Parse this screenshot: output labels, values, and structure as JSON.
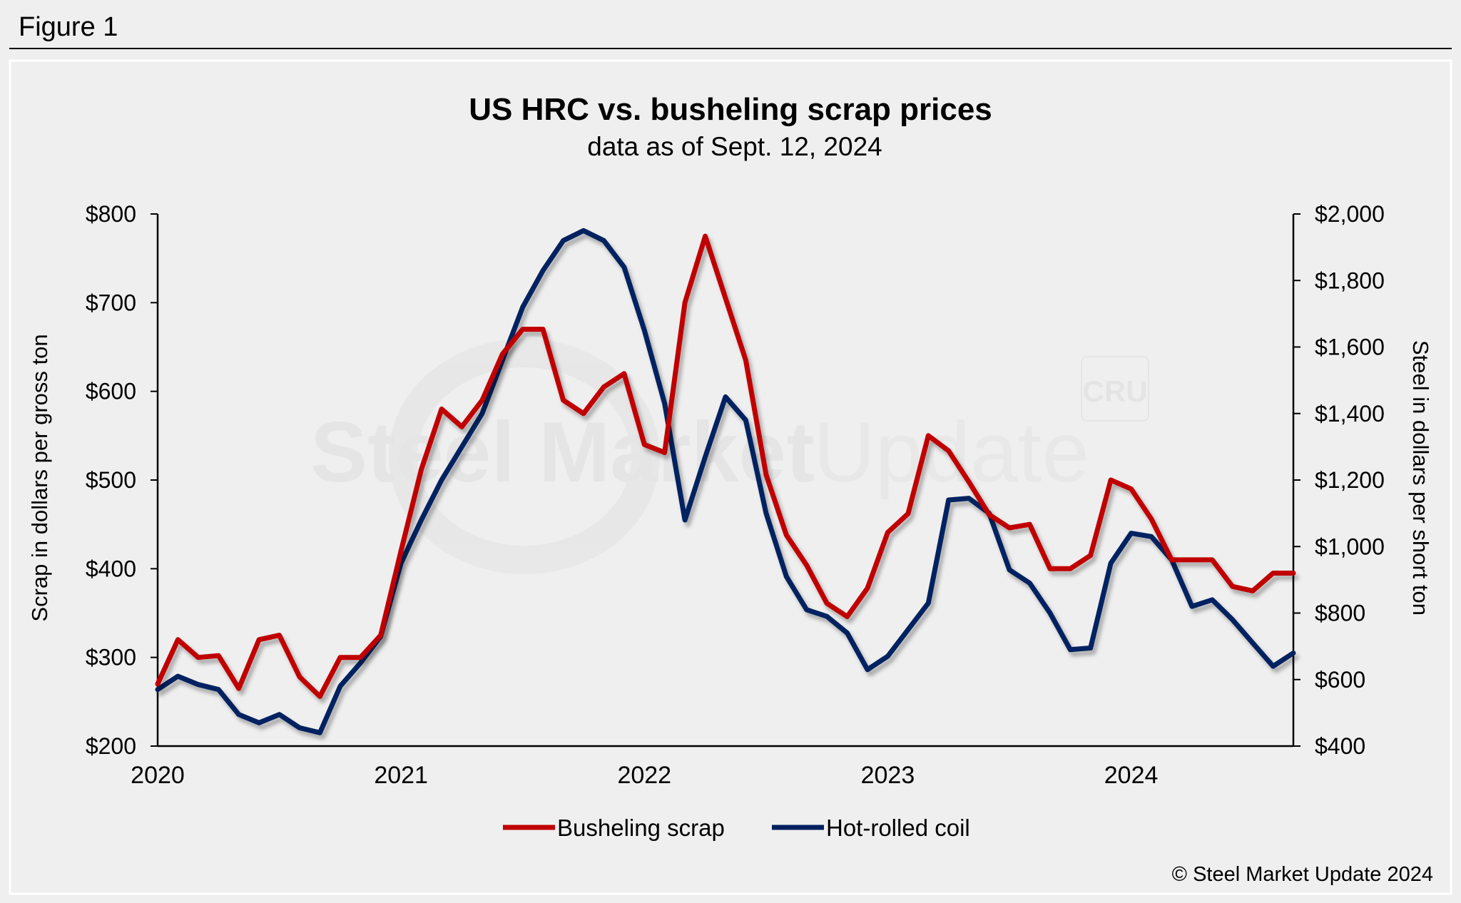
{
  "figure_label": "Figure 1",
  "copyright": "© Steel Market Update 2024",
  "watermark": {
    "text": "Steel Market Update",
    "badge": "CRU"
  },
  "colors": {
    "scrap": "#C00000",
    "hrc": "#002060",
    "background": "#EFEFEF"
  },
  "chart_data": {
    "type": "line",
    "title": "US HRC vs. busheling scrap prices",
    "subtitle": "data as of Sept. 12, 2024",
    "ylabel": "Scrap in dollars per gross ton",
    "y2label": "Steel in dollars per short ton",
    "ylim": [
      200,
      800
    ],
    "y2lim": [
      400,
      2000
    ],
    "yticks": [
      "$200",
      "$300",
      "$400",
      "$500",
      "$600",
      "$700",
      "$800"
    ],
    "y2ticks": [
      "$400",
      "$600",
      "$800",
      "$1,000",
      "$1,200",
      "$1,400",
      "$1,600",
      "$1,800",
      "$2,000"
    ],
    "xticks": [
      "2020",
      "2021",
      "2022",
      "2023",
      "2024"
    ],
    "x_start": "2020-01",
    "x_frequency": "monthly",
    "grid": false,
    "legend_position": "bottom",
    "series": [
      {
        "name": "Busheling scrap",
        "axis": "left",
        "values": [
          270,
          320,
          300,
          302,
          265,
          320,
          325,
          278,
          256,
          300,
          300,
          325,
          420,
          512,
          580,
          560,
          590,
          642,
          670,
          670,
          590,
          575,
          605,
          620,
          540,
          531,
          700,
          775,
          705,
          635,
          506,
          438,
          404,
          361,
          346,
          378,
          441,
          462,
          550,
          533,
          498,
          461,
          446,
          450,
          400,
          400,
          415,
          500,
          490,
          456,
          410,
          410,
          410,
          380,
          375,
          395,
          395
        ]
      },
      {
        "name": "Hot-rolled coil",
        "axis": "right",
        "values": [
          570,
          610,
          585,
          570,
          495,
          470,
          495,
          455,
          440,
          580,
          650,
          730,
          950,
          1080,
          1200,
          1300,
          1400,
          1560,
          1720,
          1830,
          1920,
          1950,
          1920,
          1840,
          1650,
          1430,
          1080,
          1270,
          1450,
          1380,
          1100,
          910,
          810,
          790,
          740,
          630,
          670,
          750,
          830,
          1140,
          1145,
          1100,
          930,
          890,
          800,
          690,
          695,
          950,
          1040,
          1030,
          960,
          820,
          840,
          780,
          710,
          640,
          680
        ]
      }
    ]
  }
}
